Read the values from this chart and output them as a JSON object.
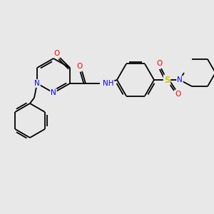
{
  "background_color": "#e8e8e8",
  "bond_color": "#000000",
  "atom_colors": {
    "N": "#0000ff",
    "O": "#ff0000",
    "S": "#cccc00",
    "C": "#000000",
    "H": "#444444"
  },
  "bg": "#e8e8e8"
}
